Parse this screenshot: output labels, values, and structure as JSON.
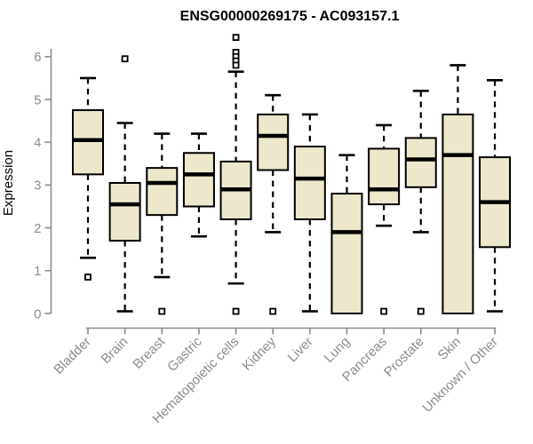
{
  "chart_data": {
    "type": "boxplot",
    "title": "ENSG00000269175 - AC093157.1",
    "ylabel": "Expression",
    "xlabel": "",
    "ylim": [
      0,
      6.5
    ],
    "yticks": [
      0,
      1,
      2,
      3,
      4,
      5,
      6
    ],
    "grid": false,
    "legend": "none",
    "categories": [
      "Bladder",
      "Brain",
      "Breast",
      "Gastric",
      "Hematopoietic cells",
      "Kidney",
      "Liver",
      "Lung",
      "Pancreas",
      "Prostate",
      "Skin",
      "Unknown / Other"
    ],
    "boxes": [
      {
        "label": "Bladder",
        "whisker_low": 1.3,
        "q1": 3.25,
        "median": 4.05,
        "q3": 4.75,
        "whisker_high": 5.5,
        "outliers": [
          0.85
        ]
      },
      {
        "label": "Brain",
        "whisker_low": 0.05,
        "q1": 1.7,
        "median": 2.55,
        "q3": 3.05,
        "whisker_high": 4.45,
        "outliers": [
          5.95
        ]
      },
      {
        "label": "Breast",
        "whisker_low": 0.85,
        "q1": 2.3,
        "median": 3.05,
        "q3": 3.4,
        "whisker_high": 4.2,
        "outliers": [
          0.05
        ]
      },
      {
        "label": "Gastric",
        "whisker_low": 1.8,
        "q1": 2.5,
        "median": 3.25,
        "q3": 3.75,
        "whisker_high": 4.2,
        "outliers": []
      },
      {
        "label": "Hematopoietic cells",
        "whisker_low": 0.7,
        "q1": 2.2,
        "median": 2.9,
        "q3": 3.55,
        "whisker_high": 5.65,
        "outliers": [
          6.45,
          6.1,
          6.0,
          5.9,
          5.8,
          0.05
        ]
      },
      {
        "label": "Kidney",
        "whisker_low": 1.9,
        "q1": 3.35,
        "median": 4.15,
        "q3": 4.65,
        "whisker_high": 5.1,
        "outliers": [
          0.05
        ]
      },
      {
        "label": "Liver",
        "whisker_low": 0.05,
        "q1": 2.2,
        "median": 3.15,
        "q3": 3.9,
        "whisker_high": 4.65,
        "outliers": []
      },
      {
        "label": "Lung",
        "whisker_low": 0,
        "q1": 0,
        "median": 1.9,
        "q3": 2.8,
        "whisker_high": 3.7,
        "outliers": []
      },
      {
        "label": "Pancreas",
        "whisker_low": 2.05,
        "q1": 2.55,
        "median": 2.9,
        "q3": 3.85,
        "whisker_high": 4.4,
        "outliers": [
          0.05
        ]
      },
      {
        "label": "Prostate",
        "whisker_low": 1.9,
        "q1": 2.95,
        "median": 3.6,
        "q3": 4.1,
        "whisker_high": 5.2,
        "outliers": [
          0.05
        ]
      },
      {
        "label": "Skin",
        "whisker_low": 0,
        "q1": 0,
        "median": 3.7,
        "q3": 4.65,
        "whisker_high": 5.8,
        "outliers": []
      },
      {
        "label": "Unknown / Other",
        "whisker_low": 0.05,
        "q1": 1.55,
        "median": 2.6,
        "q3": 3.65,
        "whisker_high": 5.45,
        "outliers": []
      }
    ],
    "colors": {
      "box_fill": "#EDE8CB",
      "box_border": "#000000",
      "median": "#000000",
      "whisker": "#000000",
      "outlier_border": "#000000",
      "outlier_fill": "#ffffff",
      "axis": "#8c8c8c",
      "tick_label": "#8c8c8c",
      "title": "#000000",
      "background": "#ffffff"
    }
  }
}
